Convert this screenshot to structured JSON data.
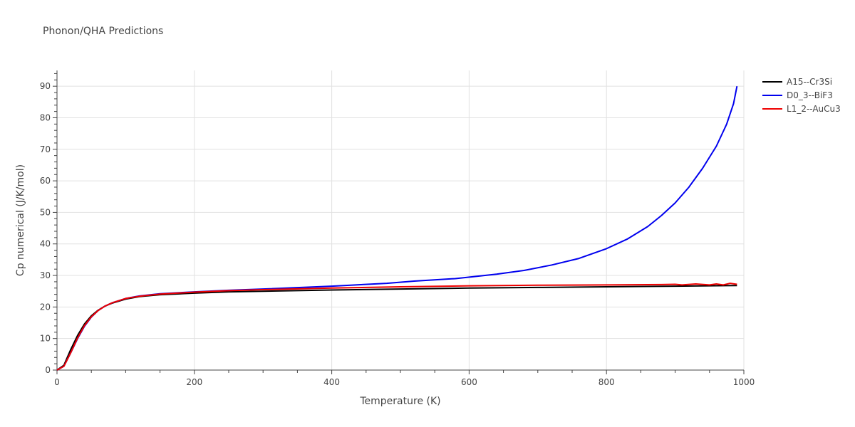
{
  "chart_data": {
    "type": "line",
    "title": "Phonon/QHA Predictions",
    "xlabel": "Temperature (K)",
    "ylabel": "Cp numerical (J/K/mol)",
    "xlim": [
      0,
      1000
    ],
    "ylim": [
      0,
      95
    ],
    "xticks": [
      0,
      200,
      400,
      600,
      800,
      1000
    ],
    "yticks": [
      0,
      10,
      20,
      30,
      40,
      50,
      60,
      70,
      80,
      90
    ],
    "grid": true,
    "legend_position": "top-right",
    "series": [
      {
        "name": "A15--Cr3Si",
        "color": "#000000",
        "points": [
          [
            0,
            0
          ],
          [
            10,
            1.5
          ],
          [
            20,
            6.5
          ],
          [
            30,
            11
          ],
          [
            40,
            14.6
          ],
          [
            50,
            17.2
          ],
          [
            60,
            19
          ],
          [
            70,
            20.3
          ],
          [
            80,
            21.2
          ],
          [
            100,
            22.5
          ],
          [
            120,
            23.3
          ],
          [
            150,
            23.9
          ],
          [
            200,
            24.4
          ],
          [
            250,
            24.8
          ],
          [
            300,
            25.0
          ],
          [
            400,
            25.4
          ],
          [
            500,
            25.7
          ],
          [
            600,
            26.0
          ],
          [
            700,
            26.2
          ],
          [
            800,
            26.4
          ],
          [
            900,
            26.6
          ],
          [
            990,
            26.8
          ]
        ]
      },
      {
        "name": "D0_3--BiF3",
        "color": "#0000ee",
        "points": [
          [
            0,
            0
          ],
          [
            10,
            1.2
          ],
          [
            20,
            5.5
          ],
          [
            30,
            10
          ],
          [
            40,
            13.9
          ],
          [
            50,
            16.8
          ],
          [
            60,
            18.9
          ],
          [
            70,
            20.3
          ],
          [
            80,
            21.3
          ],
          [
            100,
            22.7
          ],
          [
            120,
            23.5
          ],
          [
            150,
            24.2
          ],
          [
            200,
            24.8
          ],
          [
            250,
            25.3
          ],
          [
            300,
            25.7
          ],
          [
            400,
            26.6
          ],
          [
            480,
            27.5
          ],
          [
            520,
            28.2
          ],
          [
            580,
            29.0
          ],
          [
            640,
            30.4
          ],
          [
            680,
            31.6
          ],
          [
            720,
            33.3
          ],
          [
            760,
            35.4
          ],
          [
            800,
            38.5
          ],
          [
            830,
            41.5
          ],
          [
            860,
            45.5
          ],
          [
            880,
            49.0
          ],
          [
            900,
            53.0
          ],
          [
            920,
            58.0
          ],
          [
            940,
            64.0
          ],
          [
            960,
            71.0
          ],
          [
            975,
            78.0
          ],
          [
            985,
            84.5
          ],
          [
            990,
            90.0
          ]
        ]
      },
      {
        "name": "L1_2--AuCu3",
        "color": "#ee0000",
        "points": [
          [
            0,
            0
          ],
          [
            10,
            1.2
          ],
          [
            20,
            5.5
          ],
          [
            30,
            10.2
          ],
          [
            40,
            14.1
          ],
          [
            50,
            16.9
          ],
          [
            60,
            18.9
          ],
          [
            70,
            20.3
          ],
          [
            80,
            21.3
          ],
          [
            100,
            22.7
          ],
          [
            120,
            23.4
          ],
          [
            150,
            24.1
          ],
          [
            200,
            24.7
          ],
          [
            250,
            25.2
          ],
          [
            300,
            25.5
          ],
          [
            400,
            26.0
          ],
          [
            500,
            26.4
          ],
          [
            600,
            26.7
          ],
          [
            700,
            26.9
          ],
          [
            800,
            27.0
          ],
          [
            880,
            27.1
          ],
          [
            900,
            27.2
          ],
          [
            910,
            27.0
          ],
          [
            930,
            27.3
          ],
          [
            950,
            27.0
          ],
          [
            960,
            27.3
          ],
          [
            970,
            27.0
          ],
          [
            980,
            27.5
          ],
          [
            990,
            27.2
          ]
        ]
      }
    ]
  }
}
